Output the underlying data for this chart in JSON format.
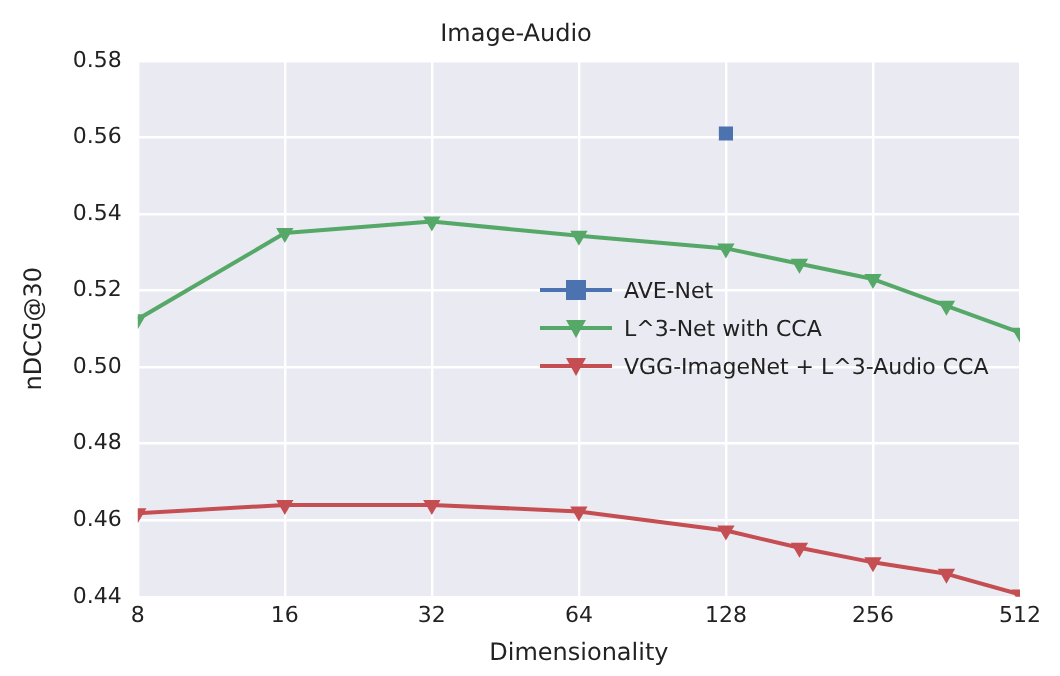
{
  "chart_data": {
    "type": "line",
    "title": "Image-Audio",
    "xlabel": "Dimensionality",
    "ylabel": "nDCG@30",
    "log": "x",
    "grid": true,
    "legend": "right",
    "xlim": [
      8,
      512
    ],
    "xticks": [
      8,
      16,
      32,
      64,
      128,
      256,
      512
    ],
    "ylim": [
      0.44,
      0.58
    ],
    "yticks": [
      0.44,
      0.46,
      0.48,
      {
        "value": 0.5,
        "label": "0.50"
      },
      0.52,
      0.54,
      0.56,
      0.58
    ],
    "series": [
      {
        "name": "AVE-Net",
        "type": "scatter",
        "marker": "square",
        "color": "#4c72b0",
        "x": [
          128
        ],
        "values": [
          0.561
        ]
      },
      {
        "name": "L^3-Net with CCA",
        "type": "line",
        "marker": "triangle",
        "color": "#55a868",
        "x": [
          8,
          16,
          32,
          64,
          128,
          181,
          256,
          362,
          512
        ],
        "values": [
          0.5125,
          0.535,
          0.538,
          0.5343,
          0.531,
          0.527,
          0.523,
          0.516,
          0.509
        ]
      },
      {
        "name": "VGG-ImageNet + L^3-Audio CCA",
        "type": "line",
        "marker": "triangle",
        "color": "#c44e52",
        "x": [
          8,
          16,
          32,
          64,
          128,
          181,
          256,
          362,
          512
        ],
        "values": [
          0.4618,
          0.464,
          0.464,
          0.4623,
          0.4573,
          0.4528,
          0.449,
          0.446,
          0.4406
        ]
      }
    ]
  }
}
